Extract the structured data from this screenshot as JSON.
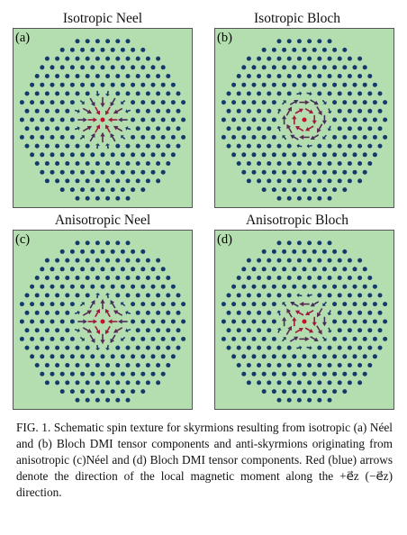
{
  "figure": {
    "panels": [
      {
        "title": "Isotropic Neel",
        "label": "(a)",
        "kind": "neel-iso"
      },
      {
        "title": "Isotropic Bloch",
        "label": "(b)",
        "kind": "bloch-iso"
      },
      {
        "title": "Anisotropic Neel",
        "label": "(c)",
        "kind": "neel-aniso"
      },
      {
        "title": "Anisotropic Bloch",
        "label": "(d)",
        "kind": "bloch-aniso"
      }
    ],
    "colors": {
      "background": "#b4deb0",
      "up": "#c8102e",
      "down": "#143a6b",
      "border": "#555555"
    }
  },
  "caption": {
    "fig_label": "FIG. 1.",
    "text": "Schematic spin texture for skyrmions resulting from isotropic (a) Néel and (b) Bloch DMI tensor components and anti-skyrmions originating from anisotropic (c)Néel and (d) Bloch DMI tensor components. Red (blue) arrows denote the direction of the local magnetic moment along the +e⃗z (−e⃗z) direction."
  }
}
